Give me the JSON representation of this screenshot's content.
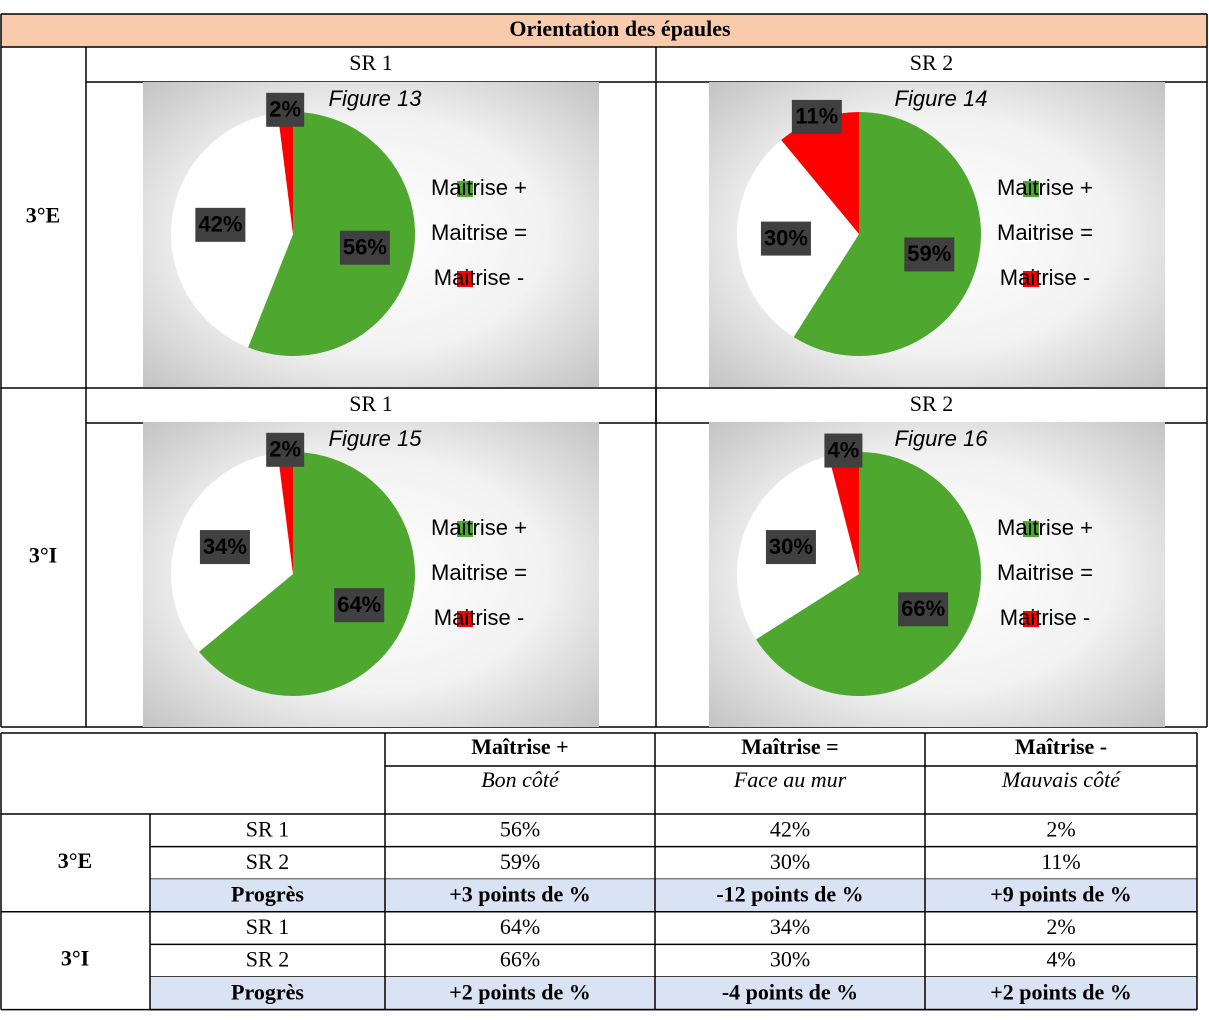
{
  "document": {
    "title": "Orientation des épaules",
    "groups": [
      {
        "label": "3°E",
        "columns": [
          "SR 1",
          "SR 2"
        ]
      },
      {
        "label": "3°I",
        "columns": [
          "SR 1",
          "SR 2"
        ]
      }
    ]
  },
  "chart_data": [
    {
      "type": "pie",
      "title": "Figure 13",
      "categories": [
        "Maitrise +",
        "Maitrise =",
        "Maitrise -"
      ],
      "values": [
        56,
        42,
        2
      ],
      "value_labels": [
        "56%",
        "42%",
        "2%"
      ],
      "colors": [
        "#4ea72e",
        "#ffffff",
        "#ff0000"
      ]
    },
    {
      "type": "pie",
      "title": "Figure 14",
      "categories": [
        "Maitrise +",
        "Maitrise =",
        "Maitrise -"
      ],
      "values": [
        59,
        30,
        11
      ],
      "value_labels": [
        "59%",
        "30%",
        "11%"
      ],
      "colors": [
        "#4ea72e",
        "#ffffff",
        "#ff0000"
      ]
    },
    {
      "type": "pie",
      "title": "Figure 15",
      "categories": [
        "Maitrise +",
        "Maitrise =",
        "Maitrise -"
      ],
      "values": [
        64,
        34,
        2
      ],
      "value_labels": [
        "64%",
        "34%",
        "2%"
      ],
      "colors": [
        "#4ea72e",
        "#ffffff",
        "#ff0000"
      ]
    },
    {
      "type": "pie",
      "title": "Figure 16",
      "categories": [
        "Maitrise +",
        "Maitrise =",
        "Maitrise -"
      ],
      "values": [
        66,
        30,
        4
      ],
      "value_labels": [
        "66%",
        "30%",
        "4%"
      ],
      "colors": [
        "#4ea72e",
        "#ffffff",
        "#ff0000"
      ]
    }
  ],
  "table": {
    "header": [
      "Maîtrise +",
      "Maîtrise =",
      "Maîtrise -"
    ],
    "subheader": [
      "Bon côté",
      "Face au mur",
      "Mauvais côté"
    ],
    "groups": [
      {
        "label": "3°E",
        "rows": [
          [
            "SR 1",
            "56%",
            "42%",
            "2%"
          ],
          [
            "SR 2",
            "59%",
            "30%",
            "11%"
          ],
          [
            "Progrès",
            "+3 points de %",
            "-12 points de %",
            "+9 points de %"
          ]
        ]
      },
      {
        "label": "3°I",
        "rows": [
          [
            "SR 1",
            "64%",
            "34%",
            "2%"
          ],
          [
            "SR 2",
            "66%",
            "30%",
            "4%"
          ],
          [
            "Progrès",
            "+2 points de %",
            "-4 points de %",
            "+2 points de %"
          ]
        ]
      }
    ]
  }
}
